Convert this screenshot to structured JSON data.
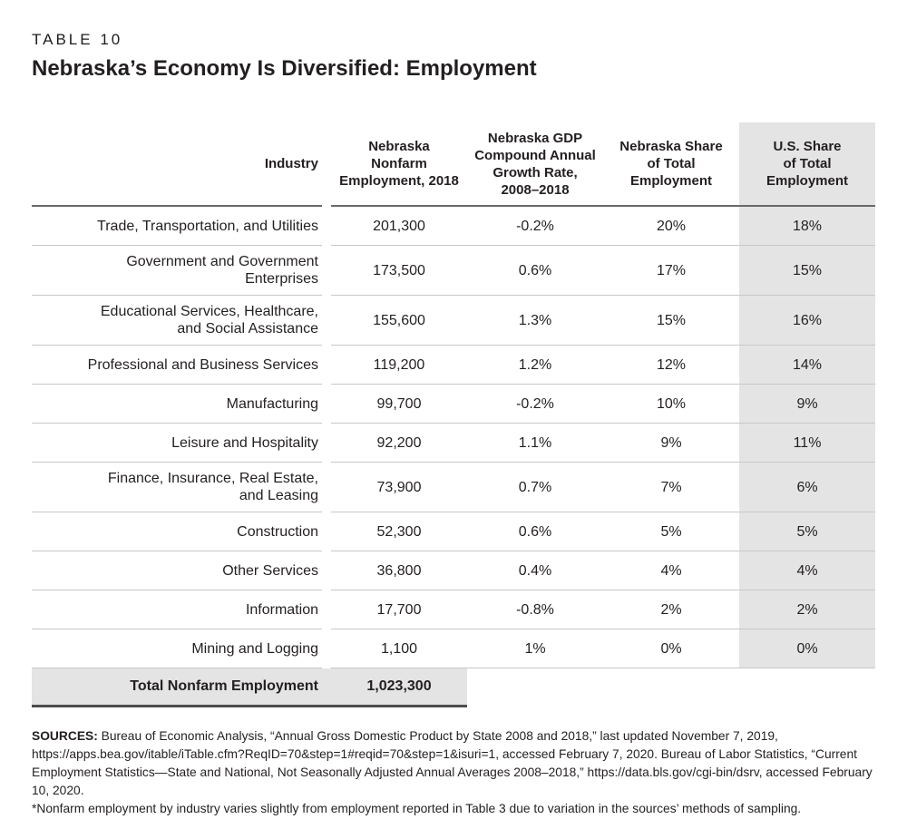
{
  "page": {
    "table_label": "TABLE 10",
    "title": "Nebraska’s Economy Is Diversified: Employment"
  },
  "table": {
    "columns": {
      "industry": "Industry",
      "employment": "Nebraska\nNonfarm\nEmployment, 2018",
      "gdp_cagr": "Nebraska GDP\nCompound Annual\nGrowth Rate,\n2008–2018",
      "ne_share": "Nebraska Share\nof Total\nEmployment",
      "us_share": "U.S. Share\nof Total\nEmployment"
    },
    "rows": [
      {
        "industry": "Trade, Transportation, and Utilities",
        "employment": "201,300",
        "gdp_cagr": "-0.2%",
        "ne_share": "20%",
        "us_share": "18%"
      },
      {
        "industry": "Government and Government\nEnterprises",
        "employment": "173,500",
        "gdp_cagr": "0.6%",
        "ne_share": "17%",
        "us_share": "15%"
      },
      {
        "industry": "Educational Services, Healthcare,\nand Social Assistance",
        "employment": "155,600",
        "gdp_cagr": "1.3%",
        "ne_share": "15%",
        "us_share": "16%"
      },
      {
        "industry": "Professional and Business Services",
        "employment": "119,200",
        "gdp_cagr": "1.2%",
        "ne_share": "12%",
        "us_share": "14%"
      },
      {
        "industry": "Manufacturing",
        "employment": "99,700",
        "gdp_cagr": "-0.2%",
        "ne_share": "10%",
        "us_share": "9%"
      },
      {
        "industry": "Leisure and Hospitality",
        "employment": "92,200",
        "gdp_cagr": "1.1%",
        "ne_share": "9%",
        "us_share": "11%"
      },
      {
        "industry": "Finance, Insurance, Real Estate,\nand Leasing",
        "employment": "73,900",
        "gdp_cagr": "0.7%",
        "ne_share": "7%",
        "us_share": "6%"
      },
      {
        "industry": "Construction",
        "employment": "52,300",
        "gdp_cagr": "0.6%",
        "ne_share": "5%",
        "us_share": "5%"
      },
      {
        "industry": "Other Services",
        "employment": "36,800",
        "gdp_cagr": "0.4%",
        "ne_share": "4%",
        "us_share": "4%"
      },
      {
        "industry": "Information",
        "employment": "17,700",
        "gdp_cagr": "-0.8%",
        "ne_share": "2%",
        "us_share": "2%"
      },
      {
        "industry": "Mining and Logging",
        "employment": "1,100",
        "gdp_cagr": "1%",
        "ne_share": "0%",
        "us_share": "0%"
      }
    ],
    "total": {
      "label": "Total Nonfarm Employment",
      "value": "1,023,300"
    }
  },
  "footer": {
    "sources_label": "SOURCES:",
    "sources_text": " Bureau of Economic Analysis, “Annual Gross Domestic Product by State 2008 and 2018,” last updated November 7, 2019, https://apps.bea.gov/itable/iTable.cfm?ReqID=70&step=1#reqid=70&step=1&isuri=1, accessed February 7, 2020. Bureau of Labor Statistics, “Current Employment Statistics—State and National, Not Seasonally Adjusted Annual Averages 2008–2018,” https://data.bls.gov/cgi-bin/dsrv, accessed February 10, 2020.",
    "note_text": "*Nonfarm employment by industry varies slightly from employment reported in Table 3 due to variation in the sources’ methods of sampling."
  },
  "colors": {
    "highlight_fill": "#e4e4e4",
    "header_rule": "#696969",
    "row_rule": "#c8c8c8",
    "total_rule": "#4d4d4d",
    "text": "#231f20"
  }
}
